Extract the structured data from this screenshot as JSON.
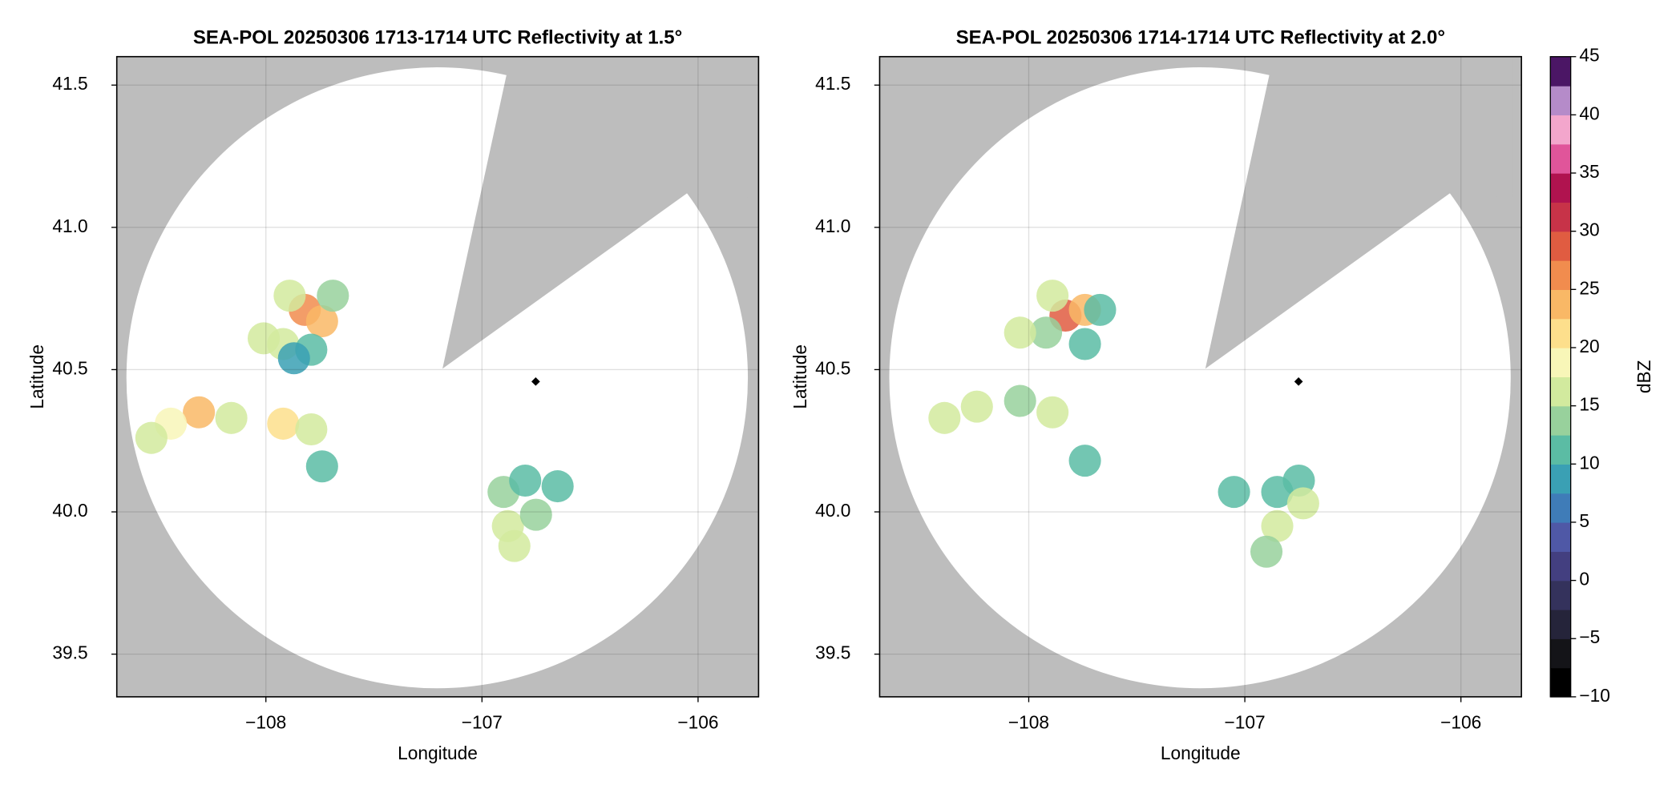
{
  "chart_data": [
    {
      "type": "scatter",
      "title": "SEA-POL 20250306 1713-1714 UTC Reflectivity at 1.5°",
      "x_label": "Longitude",
      "y_label": "Latitude",
      "xlim": [
        -108.69,
        -105.72
      ],
      "ylim": [
        39.35,
        41.6
      ],
      "xticks": [
        {
          "value": -108,
          "label": "−108"
        },
        {
          "value": -107,
          "label": "−107"
        },
        {
          "value": -106,
          "label": "−106"
        }
      ],
      "yticks": [
        {
          "value": 39.5,
          "label": "39.5"
        },
        {
          "value": 40,
          "label": "40.0"
        },
        {
          "value": 40.5,
          "label": "40.5"
        },
        {
          "value": 41,
          "label": "41.0"
        },
        {
          "value": 41.5,
          "label": "41.5"
        }
      ],
      "grid": true,
      "x": [
        -107.82,
        -107.74,
        -107.89,
        -107.69,
        -107.92,
        -107.79,
        -108.01,
        -107.87,
        -108.31,
        -108.44,
        -108.53,
        -108.16,
        -107.92,
        -107.79,
        -107.74,
        -106.9,
        -106.8,
        -106.88,
        -106.75,
        -106.85,
        -106.65
      ],
      "y": [
        40.71,
        40.67,
        40.76,
        40.76,
        40.59,
        40.57,
        40.61,
        40.54,
        40.35,
        40.31,
        40.26,
        40.33,
        40.31,
        40.29,
        40.16,
        40.07,
        40.11,
        39.95,
        39.99,
        39.88,
        40.09
      ],
      "values": [
        27,
        24,
        17,
        14,
        15,
        12,
        16,
        9,
        23,
        18,
        16,
        17,
        22,
        15,
        11,
        14,
        11,
        16,
        13,
        17,
        10
      ]
    },
    {
      "type": "scatter",
      "title": "SEA-POL 20250306 1714-1714 UTC Reflectivity at 2.0°",
      "x_label": "Longitude",
      "y_label": "Latitude",
      "xlim": [
        -108.69,
        -105.72
      ],
      "ylim": [
        39.35,
        41.6
      ],
      "xticks": [
        {
          "value": -108,
          "label": "−108"
        },
        {
          "value": -107,
          "label": "−107"
        },
        {
          "value": -106,
          "label": "−106"
        }
      ],
      "yticks": [
        {
          "value": 39.5,
          "label": "39.5"
        },
        {
          "value": 40,
          "label": "40.0"
        },
        {
          "value": 40.5,
          "label": "40.5"
        },
        {
          "value": 41,
          "label": "41.0"
        },
        {
          "value": 41.5,
          "label": "41.5"
        }
      ],
      "grid": true,
      "x": [
        -107.83,
        -107.74,
        -107.89,
        -107.67,
        -107.92,
        -107.74,
        -108.04,
        -108.24,
        -108.39,
        -108.04,
        -107.89,
        -107.74,
        -106.85,
        -106.75,
        -106.85,
        -106.73,
        -106.9,
        -107.05
      ],
      "y": [
        40.69,
        40.71,
        40.76,
        40.71,
        40.63,
        40.59,
        40.63,
        40.37,
        40.33,
        40.39,
        40.35,
        40.18,
        40.07,
        40.11,
        39.95,
        40.03,
        39.86,
        40.07
      ],
      "values": [
        28,
        23,
        15,
        12,
        14,
        11,
        16,
        16,
        15,
        14,
        16,
        10,
        10,
        11,
        16,
        15,
        13,
        12
      ]
    }
  ],
  "colorbar": {
    "label": "dBZ",
    "lim": [
      -10,
      45
    ],
    "ticks": [
      {
        "value": -10,
        "label": "−10"
      },
      {
        "value": -5,
        "label": "−5"
      },
      0,
      5,
      10,
      15,
      20,
      25,
      30,
      35,
      40,
      45
    ],
    "colors": [
      "#000000",
      "#141418",
      "#25243a",
      "#34325c",
      "#433f80",
      "#4f58a6",
      "#3f7cb8",
      "#3aa0b4",
      "#5bbca4",
      "#98d19c",
      "#d2ea9e",
      "#f8f6b8",
      "#fddf8c",
      "#f9b866",
      "#f18c4e",
      "#e05c41",
      "#c73348",
      "#b0134f",
      "#e0559a",
      "#f3a6cc",
      "#b58bc9",
      "#4b1665"
    ]
  }
}
